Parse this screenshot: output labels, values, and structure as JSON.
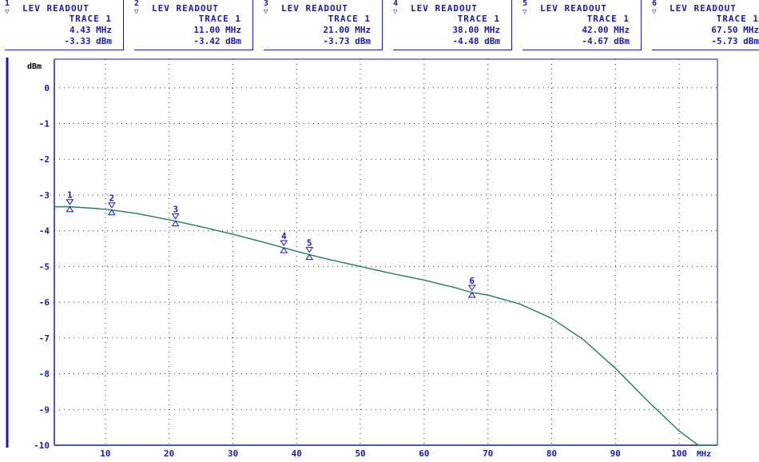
{
  "markers": [
    {
      "num": "1",
      "title": "LEV READOUT",
      "trace": "TRACE 1",
      "freq": "4.43",
      "funit": "MHz",
      "level": "-3.33",
      "lunit": "dBm"
    },
    {
      "num": "2",
      "title": "LEV READOUT",
      "trace": "TRACE 1",
      "freq": "11.00",
      "funit": "MHz",
      "level": "-3.42",
      "lunit": "dBm"
    },
    {
      "num": "3",
      "title": "LEV READOUT",
      "trace": "TRACE 1",
      "freq": "21.00",
      "funit": "MHz",
      "level": "-3.73",
      "lunit": "dBm"
    },
    {
      "num": "4",
      "title": "LEV READOUT",
      "trace": "TRACE 1",
      "freq": "38.00",
      "funit": "MHz",
      "level": "-4.48",
      "lunit": "dBm"
    },
    {
      "num": "5",
      "title": "LEV READOUT",
      "trace": "TRACE 1",
      "freq": "42.00",
      "funit": "MHz",
      "level": "-4.67",
      "lunit": "dBm"
    },
    {
      "num": "6",
      "title": "LEV READOUT",
      "trace": "TRACE 1",
      "freq": "67.50",
      "funit": "MHz",
      "level": "-5.73",
      "lunit": "dBm"
    }
  ],
  "chart_data": {
    "type": "line",
    "ylabel": "dBm",
    "xlabel": "MHz",
    "xlim": [
      2,
      106
    ],
    "ylim": [
      -10,
      0.8
    ],
    "xticks": [
      10,
      20,
      30,
      40,
      50,
      60,
      70,
      80,
      90,
      100
    ],
    "yticks": [
      0,
      -1,
      -2,
      -3,
      -4,
      -5,
      -6,
      -7,
      -8,
      -9,
      -10
    ],
    "grid": true,
    "colors": {
      "trace": "#1f7a6e",
      "axes": "#1a1aa8",
      "grid": "#333333"
    },
    "series": [
      {
        "x": [
          2,
          4.43,
          8,
          11,
          15,
          21,
          25,
          30,
          35,
          38,
          42,
          45,
          50,
          55,
          60,
          65,
          67.5,
          70,
          75,
          80,
          85,
          90,
          95,
          100,
          103,
          104.5,
          106
        ],
        "y": [
          -3.33,
          -3.33,
          -3.37,
          -3.42,
          -3.52,
          -3.73,
          -3.89,
          -4.1,
          -4.33,
          -4.48,
          -4.67,
          -4.8,
          -5.0,
          -5.2,
          -5.38,
          -5.6,
          -5.73,
          -5.8,
          -6.05,
          -6.45,
          -7.05,
          -7.85,
          -8.75,
          -9.6,
          -10.0,
          -10.0,
          -10.0
        ]
      }
    ],
    "markers": [
      {
        "label": "1",
        "x": 4.43,
        "y": -3.33
      },
      {
        "label": "2",
        "x": 11.0,
        "y": -3.42
      },
      {
        "label": "3",
        "x": 21.0,
        "y": -3.73
      },
      {
        "label": "4",
        "x": 38.0,
        "y": -4.48
      },
      {
        "label": "5",
        "x": 42.0,
        "y": -4.67
      },
      {
        "label": "6",
        "x": 67.5,
        "y": -5.73
      }
    ]
  }
}
